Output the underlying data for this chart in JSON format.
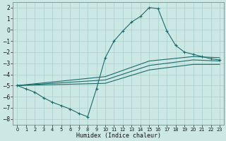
{
  "xlabel": "Humidex (Indice chaleur)",
  "xlim": [
    -0.5,
    23.5
  ],
  "ylim": [
    -8.5,
    2.5
  ],
  "yticks": [
    2,
    1,
    0,
    -1,
    -2,
    -3,
    -4,
    -5,
    -6,
    -7,
    -8
  ],
  "xticks": [
    0,
    1,
    2,
    3,
    4,
    5,
    6,
    7,
    8,
    9,
    10,
    11,
    12,
    13,
    14,
    15,
    16,
    17,
    18,
    19,
    20,
    21,
    22,
    23
  ],
  "bg_color": "#cce8e4",
  "grid_color": "#aacfcb",
  "line_color": "#1a6b6b",
  "line1_x": [
    0,
    1,
    2,
    3,
    4,
    5,
    6,
    7,
    8,
    9,
    10,
    11,
    12,
    13,
    14,
    15,
    16,
    17,
    18,
    19,
    20,
    21,
    22,
    23
  ],
  "line1_y": [
    -5.0,
    -5.3,
    -5.6,
    -6.1,
    -6.5,
    -6.8,
    -7.1,
    -7.5,
    -7.8,
    -5.3,
    -2.5,
    -1.0,
    -0.1,
    0.7,
    1.2,
    2.0,
    1.9,
    -0.1,
    -1.4,
    -2.0,
    -2.2,
    -2.4,
    -2.6,
    -2.7
  ],
  "line2_x": [
    0,
    10,
    15,
    20,
    23
  ],
  "line2_y": [
    -5.0,
    -4.2,
    -2.8,
    -2.4,
    -2.5
  ],
  "line3_x": [
    0,
    10,
    15,
    20,
    23
  ],
  "line3_y": [
    -5.0,
    -4.5,
    -3.2,
    -2.7,
    -2.8
  ],
  "line4_x": [
    0,
    10,
    15,
    20,
    23
  ],
  "line4_y": [
    -5.0,
    -4.8,
    -3.6,
    -3.1,
    -3.1
  ]
}
